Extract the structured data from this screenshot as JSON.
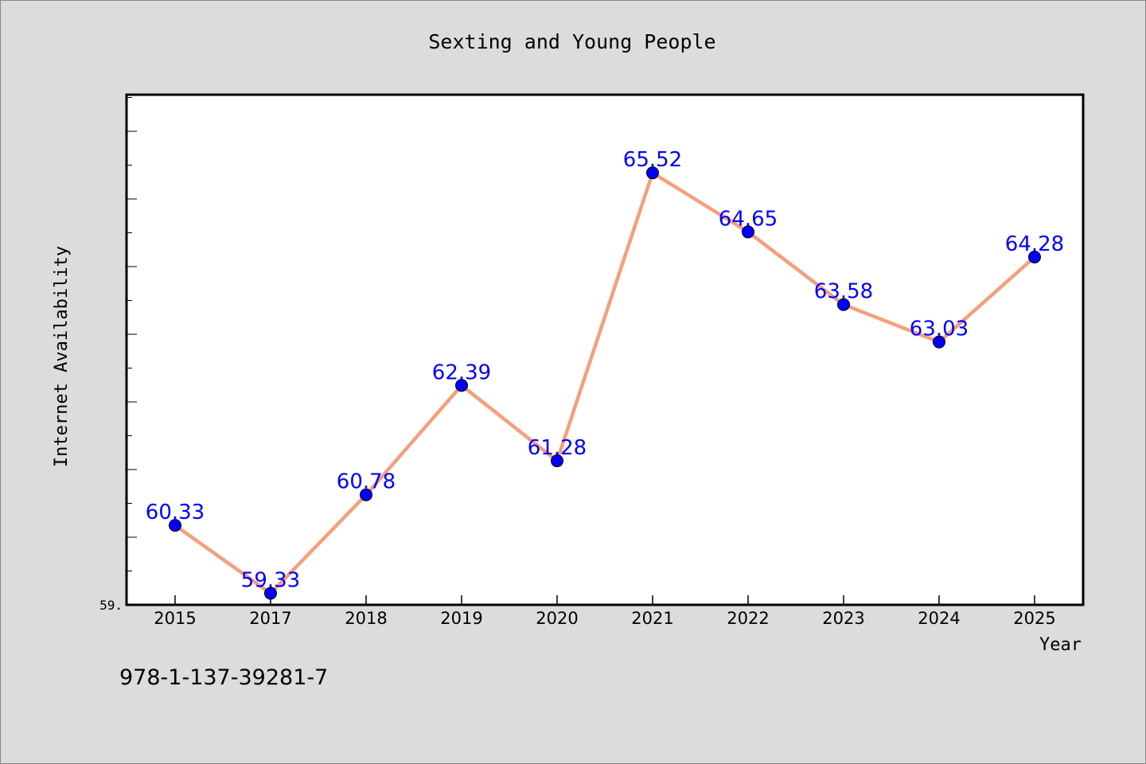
{
  "footer": {
    "isbn": "978-1-137-39281-7"
  },
  "chart_data": {
    "type": "line",
    "title": "Sexting and Young People",
    "xlabel": "Year",
    "ylabel": "Internet Availability",
    "categories": [
      "2015",
      "2017",
      "2018",
      "2019",
      "2020",
      "2021",
      "2022",
      "2023",
      "2024",
      "2025"
    ],
    "series": [
      {
        "values": [
          60.33,
          59.33,
          60.78,
          62.39,
          61.28,
          65.52,
          64.65,
          63.58,
          63.03,
          64.28
        ],
        "labels": [
          "60.33",
          "59.33",
          "60.78",
          "62.39",
          "61.28",
          "65.52",
          "64.65",
          "63.58",
          "63.03",
          "64.28"
        ]
      }
    ],
    "ylim": [
      59.16,
      66.67
    ],
    "y_tick_labels": [
      "59."
    ],
    "grid": false,
    "legend": "none",
    "colors": {
      "line": "#f4a07c",
      "marker": "#0000ff",
      "label": "#0000ff",
      "plot_bg": "#ffffff",
      "page_bg": "#dcdcdc"
    }
  }
}
